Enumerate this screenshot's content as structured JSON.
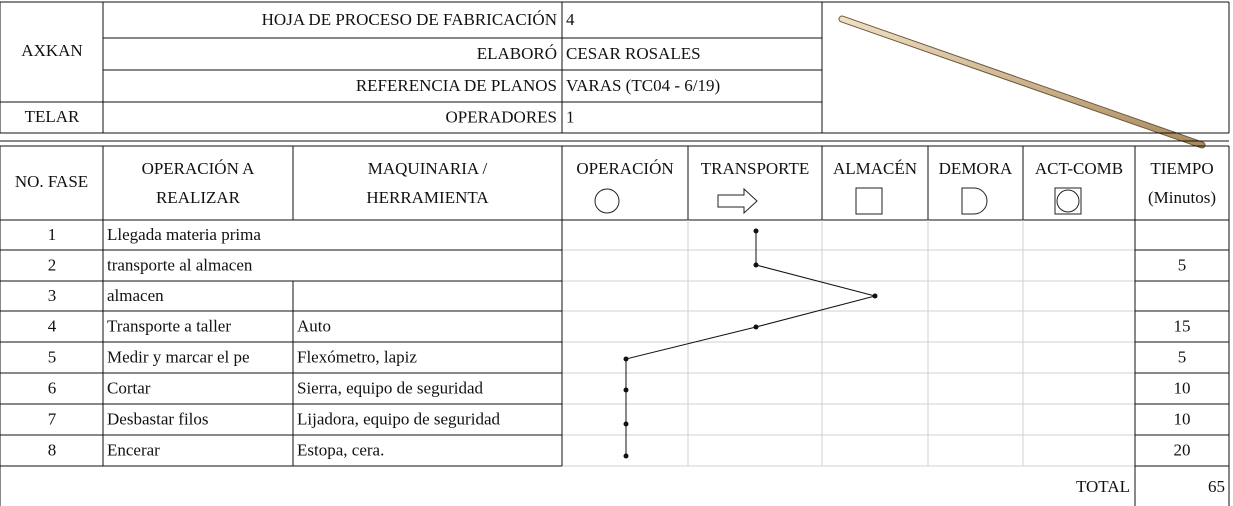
{
  "header": {
    "company": "AXKAN",
    "department": "TELAR",
    "fields": [
      {
        "label": "HOJA DE PROCESO DE FABRICACIÓN",
        "value": "4"
      },
      {
        "label": "ELABORÓ",
        "value": "CESAR ROSALES"
      },
      {
        "label": "REFERENCIA DE PLANOS",
        "value": "VARAS  (TC04 - 6/19)"
      },
      {
        "label": "OPERADORES",
        "value": "1"
      }
    ]
  },
  "table": {
    "columns": [
      {
        "lines": [
          "NO. FASE"
        ]
      },
      {
        "lines": [
          "OPERACIÓN A",
          "REALIZAR"
        ]
      },
      {
        "lines": [
          "MAQUINARIA /",
          "HERRAMIENTA"
        ]
      },
      {
        "lines": [
          "OPERACIÓN"
        ]
      },
      {
        "lines": [
          "TRANSPORTE"
        ]
      },
      {
        "lines": [
          "ALMACÉN"
        ]
      },
      {
        "lines": [
          "DEMORA"
        ]
      },
      {
        "lines": [
          "ACT-COMB"
        ]
      },
      {
        "lines": [
          "TIEMPO",
          "(Minutos)"
        ]
      }
    ],
    "rows": [
      {
        "phase": 1,
        "operation": "Llegada materia prima"
      },
      {
        "phase": 2,
        "operation": "transporte al almacen",
        "time": 5
      },
      {
        "phase": 3,
        "operation": "almacen"
      },
      {
        "phase": 4,
        "operation": "Transporte a taller",
        "tool": "Auto",
        "time": 15
      },
      {
        "phase": 5,
        "operation": "Medir y marcar el pe",
        "tool": "Flexómetro, lapiz",
        "time": 5
      },
      {
        "phase": 6,
        "operation": "Cortar",
        "tool": "Sierra, equipo de seguridad",
        "time": 10
      },
      {
        "phase": 7,
        "operation": "Desbastar filos",
        "tool": "Lijadora, equipo de seguridad",
        "time": 10
      },
      {
        "phase": 8,
        "operation": "Encerar",
        "tool": "Estopa, cera.",
        "time": 20
      }
    ],
    "total_label": "TOTAL",
    "total": 65
  }
}
